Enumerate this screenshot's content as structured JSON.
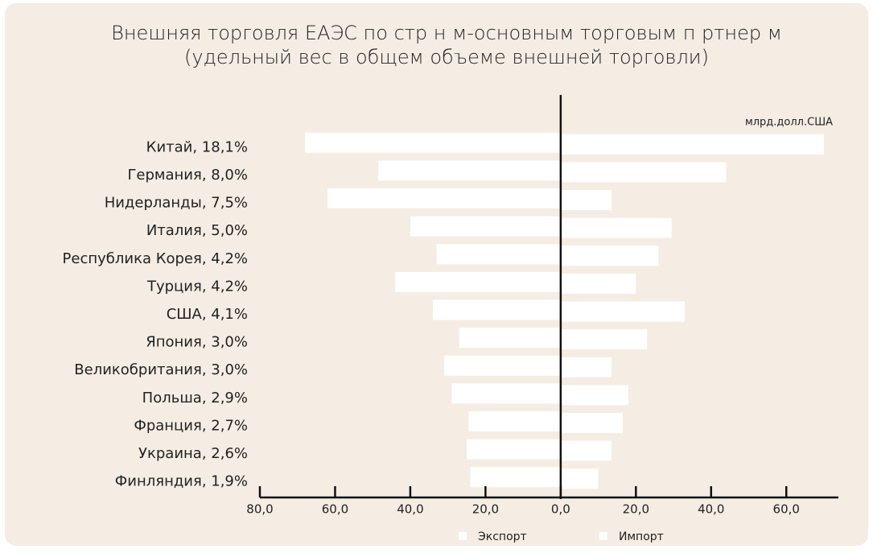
{
  "chart_data": {
    "type": "butterfly",
    "title": "Внешняя торговля ЕАЭС по стр  н  м-основным торговым п  ртнер  м",
    "subtitle": "(удельный вес в общем объеме внешней торговли)",
    "unit_label": "млрд.долл.США",
    "categories": [
      "Китай, 18,1%",
      "Германия, 8,0%",
      "Нидерланды, 7,5%",
      "Италия, 5,0%",
      "Республика Корея, 4,2%",
      "Турция, 4,2%",
      "США, 4,1%",
      "Япония, 3,0%",
      "Великобритания,  3,0%",
      "Польша, 2,9%",
      "Франция,  2,7%",
      "Украина,  2,6%",
      "Финляндия,  1,9%"
    ],
    "series": [
      {
        "name": "Экспорт",
        "color": "#ffffff",
        "values": [
          -68,
          -48.5,
          -62,
          -40,
          -33,
          -44,
          -34,
          -27,
          -31,
          -29,
          -24.5,
          -25,
          -24
        ]
      },
      {
        "name": "Импорт",
        "color": "#ffffff",
        "values": [
          70,
          44,
          13.5,
          29.5,
          26,
          20,
          33,
          23,
          13.5,
          18,
          16.5,
          13.5,
          10
        ]
      }
    ],
    "xlim": [
      -80,
      73
    ],
    "xticks": [
      {
        "value": -80,
        "label": "80,0"
      },
      {
        "value": -60,
        "label": "60,0"
      },
      {
        "value": -40,
        "label": "40,0"
      },
      {
        "value": -20,
        "label": "20,0"
      },
      {
        "value": 0,
        "label": "0,0"
      },
      {
        "value": 20,
        "label": "20,0"
      },
      {
        "value": 40,
        "label": "40,0"
      },
      {
        "value": 60,
        "label": "60,0"
      }
    ],
    "legend": "bottom"
  }
}
